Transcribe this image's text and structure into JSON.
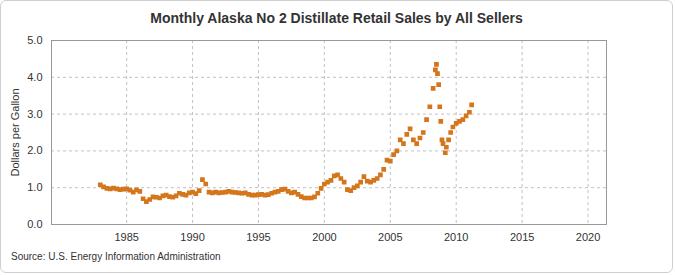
{
  "chart_data": {
    "type": "scatter",
    "title": "Monthly Alaska No 2 Distillate Retail Sales by All Sellers",
    "y_label": "Dollars per Gallon",
    "source": "Source: U.S. Energy Information Administration",
    "color": "#d4761c",
    "marker": "square",
    "grid": true,
    "xlim": [
      1979.3,
      2021.4
    ],
    "xticks": [
      1985,
      1990,
      1995,
      2000,
      2005,
      2010,
      2015,
      2020
    ],
    "ylim": [
      0,
      5
    ],
    "yticks": [
      {
        "value": 0,
        "label": "0.0"
      },
      {
        "value": 1,
        "label": "1.0"
      },
      {
        "value": 2,
        "label": "2.0"
      },
      {
        "value": 3,
        "label": "3.0"
      },
      {
        "value": 4,
        "label": "4.0"
      },
      {
        "value": 5,
        "label": "5.0"
      }
    ],
    "x": [
      1983.0,
      1983.25,
      1983.5,
      1983.75,
      1984.0,
      1984.25,
      1984.5,
      1984.75,
      1985.0,
      1985.25,
      1985.5,
      1985.75,
      1986.0,
      1986.25,
      1986.5,
      1986.75,
      1987.0,
      1987.25,
      1987.5,
      1987.75,
      1988.0,
      1988.25,
      1988.5,
      1988.75,
      1989.0,
      1989.25,
      1989.5,
      1989.75,
      1990.0,
      1990.25,
      1990.5,
      1990.75,
      1991.0,
      1991.25,
      1991.5,
      1991.75,
      1992.0,
      1992.25,
      1992.5,
      1992.75,
      1993.0,
      1993.25,
      1993.5,
      1993.75,
      1994.0,
      1994.25,
      1994.5,
      1994.75,
      1995.0,
      1995.25,
      1995.5,
      1995.75,
      1996.0,
      1996.25,
      1996.5,
      1996.75,
      1997.0,
      1997.25,
      1997.5,
      1997.75,
      1998.0,
      1998.25,
      1998.5,
      1998.75,
      1999.0,
      1999.25,
      1999.5,
      1999.75,
      2000.0,
      2000.25,
      2000.5,
      2000.75,
      2001.0,
      2001.25,
      2001.5,
      2001.75,
      2002.0,
      2002.25,
      2002.5,
      2002.75,
      2003.0,
      2003.25,
      2003.5,
      2003.75,
      2004.0,
      2004.25,
      2004.5,
      2004.75,
      2005.0,
      2005.25,
      2005.5,
      2005.75,
      2006.0,
      2006.25,
      2006.5,
      2006.75,
      2007.0,
      2007.25,
      2007.5,
      2007.75,
      2008.0,
      2008.25,
      2008.42,
      2008.5,
      2008.58,
      2008.67,
      2008.75,
      2008.83,
      2008.92,
      2009.0,
      2009.17,
      2009.25,
      2009.42,
      2009.58,
      2009.75,
      2010.0,
      2010.25,
      2010.5,
      2010.75,
      2011.0,
      2011.17
    ],
    "values": [
      1.08,
      1.02,
      0.98,
      0.97,
      0.99,
      0.97,
      0.95,
      0.96,
      0.97,
      0.93,
      0.88,
      0.94,
      0.9,
      0.7,
      0.62,
      0.68,
      0.75,
      0.74,
      0.72,
      0.78,
      0.8,
      0.76,
      0.74,
      0.78,
      0.85,
      0.82,
      0.8,
      0.86,
      0.88,
      0.84,
      0.92,
      1.22,
      1.1,
      0.88,
      0.86,
      0.88,
      0.86,
      0.87,
      0.88,
      0.9,
      0.88,
      0.87,
      0.86,
      0.85,
      0.86,
      0.82,
      0.8,
      0.8,
      0.81,
      0.82,
      0.8,
      0.81,
      0.85,
      0.88,
      0.9,
      0.95,
      0.96,
      0.9,
      0.86,
      0.88,
      0.82,
      0.76,
      0.72,
      0.72,
      0.72,
      0.75,
      0.85,
      0.98,
      1.1,
      1.15,
      1.2,
      1.32,
      1.35,
      1.25,
      1.15,
      0.95,
      0.92,
      1.0,
      1.05,
      1.15,
      1.3,
      1.18,
      1.15,
      1.2,
      1.25,
      1.35,
      1.5,
      1.75,
      1.72,
      1.9,
      2.0,
      2.3,
      2.2,
      2.45,
      2.6,
      2.3,
      2.2,
      2.35,
      2.5,
      2.85,
      3.2,
      3.7,
      4.2,
      4.35,
      4.1,
      3.8,
      3.2,
      2.8,
      2.3,
      2.2,
      1.95,
      2.1,
      2.3,
      2.5,
      2.65,
      2.75,
      2.8,
      2.85,
      2.95,
      3.05,
      3.25
    ]
  }
}
